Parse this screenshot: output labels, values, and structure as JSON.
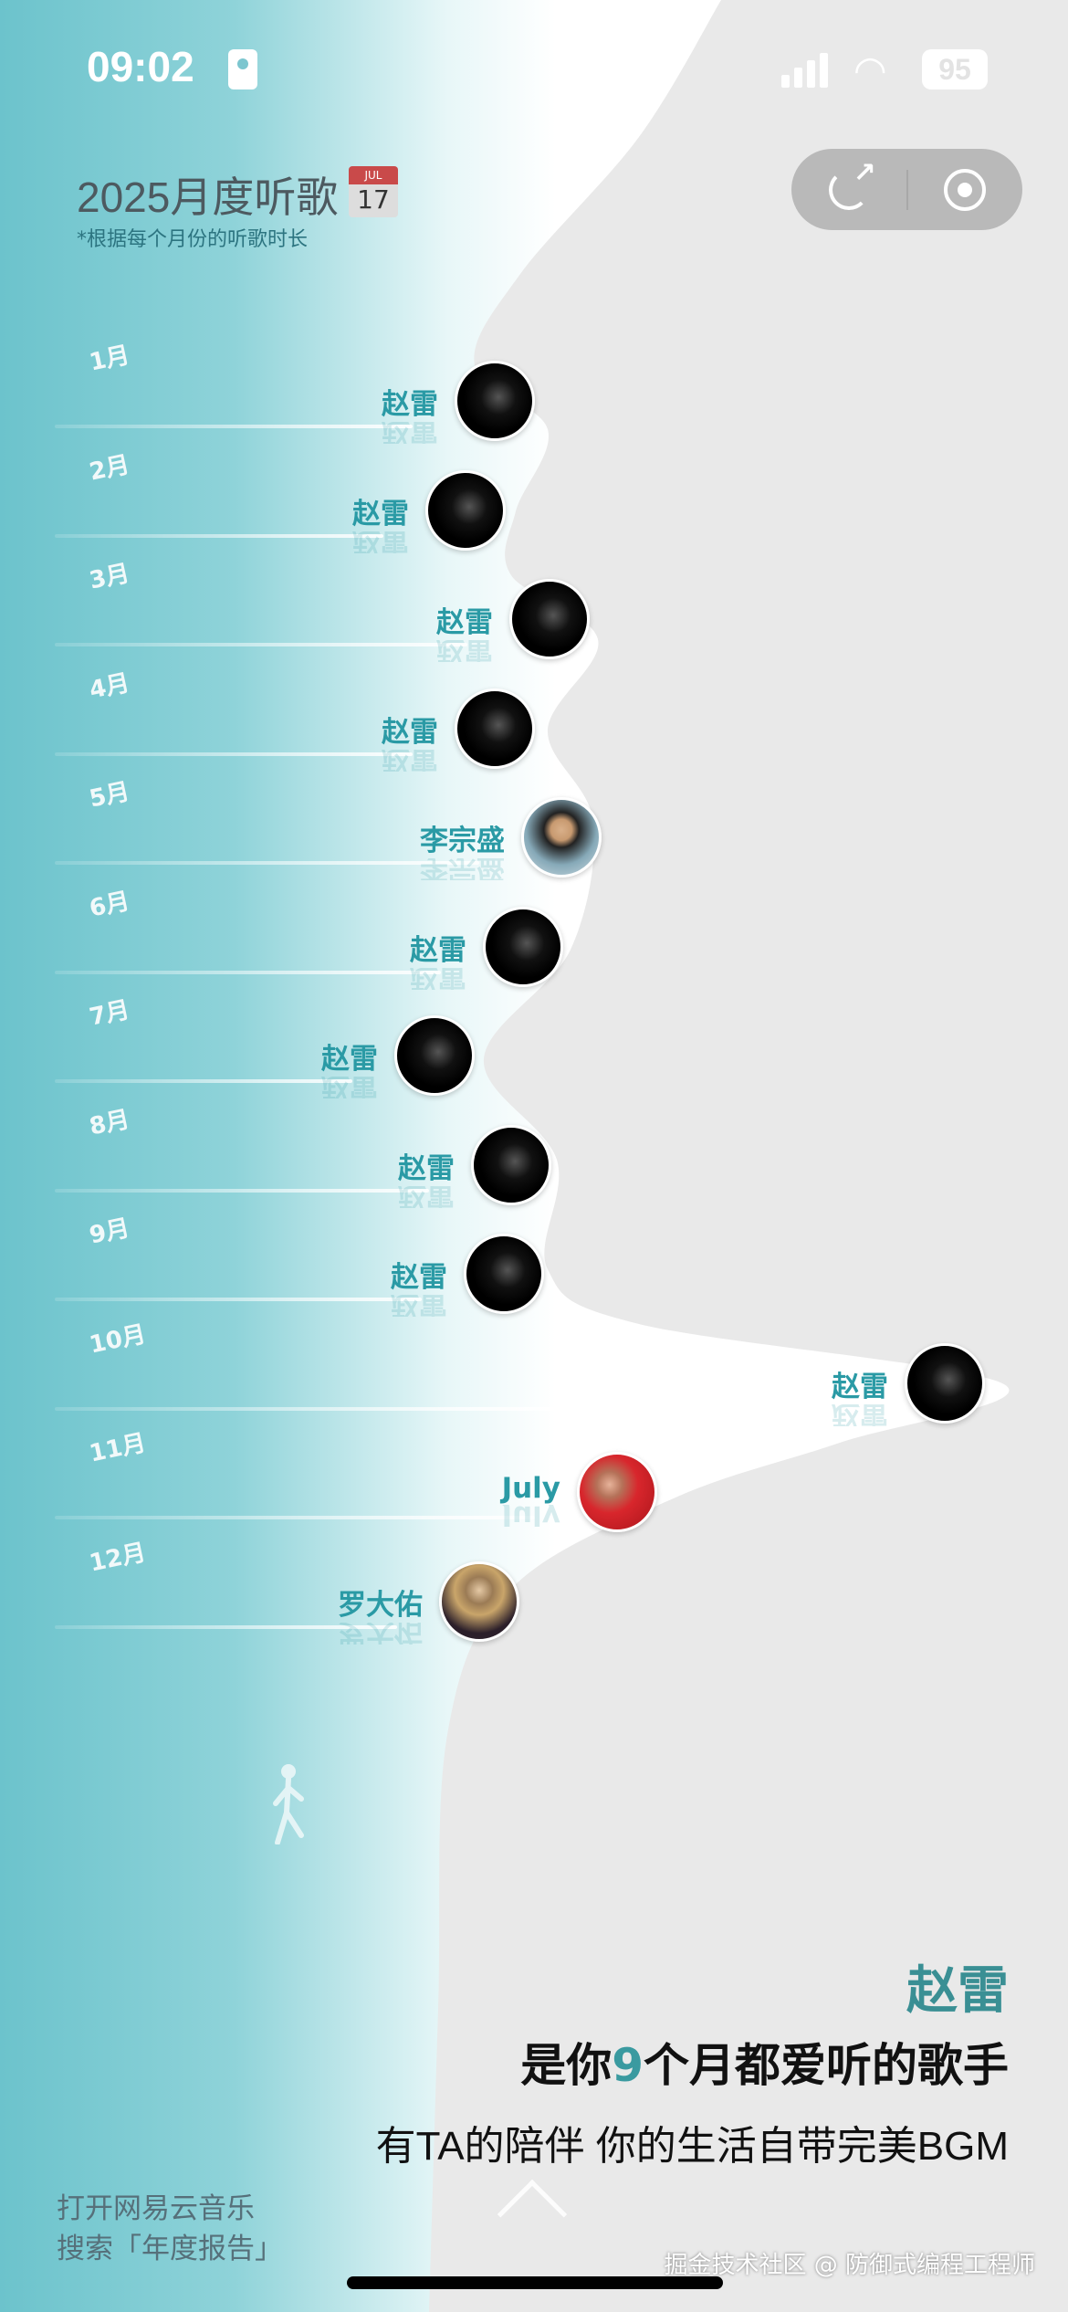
{
  "status_bar": {
    "time": "09:02",
    "battery": "95",
    "icons": [
      "person-card-icon",
      "cellular-signal-icon",
      "wifi-icon",
      "battery-icon"
    ]
  },
  "header": {
    "title": "2025月度听歌",
    "calendar_month": "JUL",
    "calendar_day": "17",
    "subtitle": "*根据每个月份的听歌时长"
  },
  "actions": {
    "share_icon": "share-icon",
    "record_icon": "target-icon"
  },
  "months": [
    {
      "month": "1月",
      "artist": "赵雷",
      "avatar": "zl"
    },
    {
      "month": "2月",
      "artist": "赵雷",
      "avatar": "zl"
    },
    {
      "month": "3月",
      "artist": "赵雷",
      "avatar": "zl"
    },
    {
      "month": "4月",
      "artist": "赵雷",
      "avatar": "zl"
    },
    {
      "month": "5月",
      "artist": "李宗盛",
      "avatar": "lzs"
    },
    {
      "month": "6月",
      "artist": "赵雷",
      "avatar": "zl"
    },
    {
      "month": "7月",
      "artist": "赵雷",
      "avatar": "zl"
    },
    {
      "month": "8月",
      "artist": "赵雷",
      "avatar": "zl"
    },
    {
      "month": "9月",
      "artist": "赵雷",
      "avatar": "zl"
    },
    {
      "month": "10月",
      "artist": "赵雷",
      "avatar": "zl"
    },
    {
      "month": "11月",
      "artist": "July",
      "avatar": "july"
    },
    {
      "month": "12月",
      "artist": "罗大佑",
      "avatar": "ldy"
    }
  ],
  "summary": {
    "artist": "赵雷",
    "line_prefix": "是你",
    "count": "9",
    "line_suffix": "个月都爱听的歌手",
    "sub": "有TA的陪伴 你的生活自带完美BGM"
  },
  "promo": {
    "line1": "打开网易云音乐",
    "line2": "搜索「年度报告」"
  },
  "watermark": "掘金技术社区 @ 防御式编程工程师",
  "colors": {
    "teal": "#6cc3cc",
    "accent": "#2a9aa5",
    "gray": "#e9e9e9"
  }
}
